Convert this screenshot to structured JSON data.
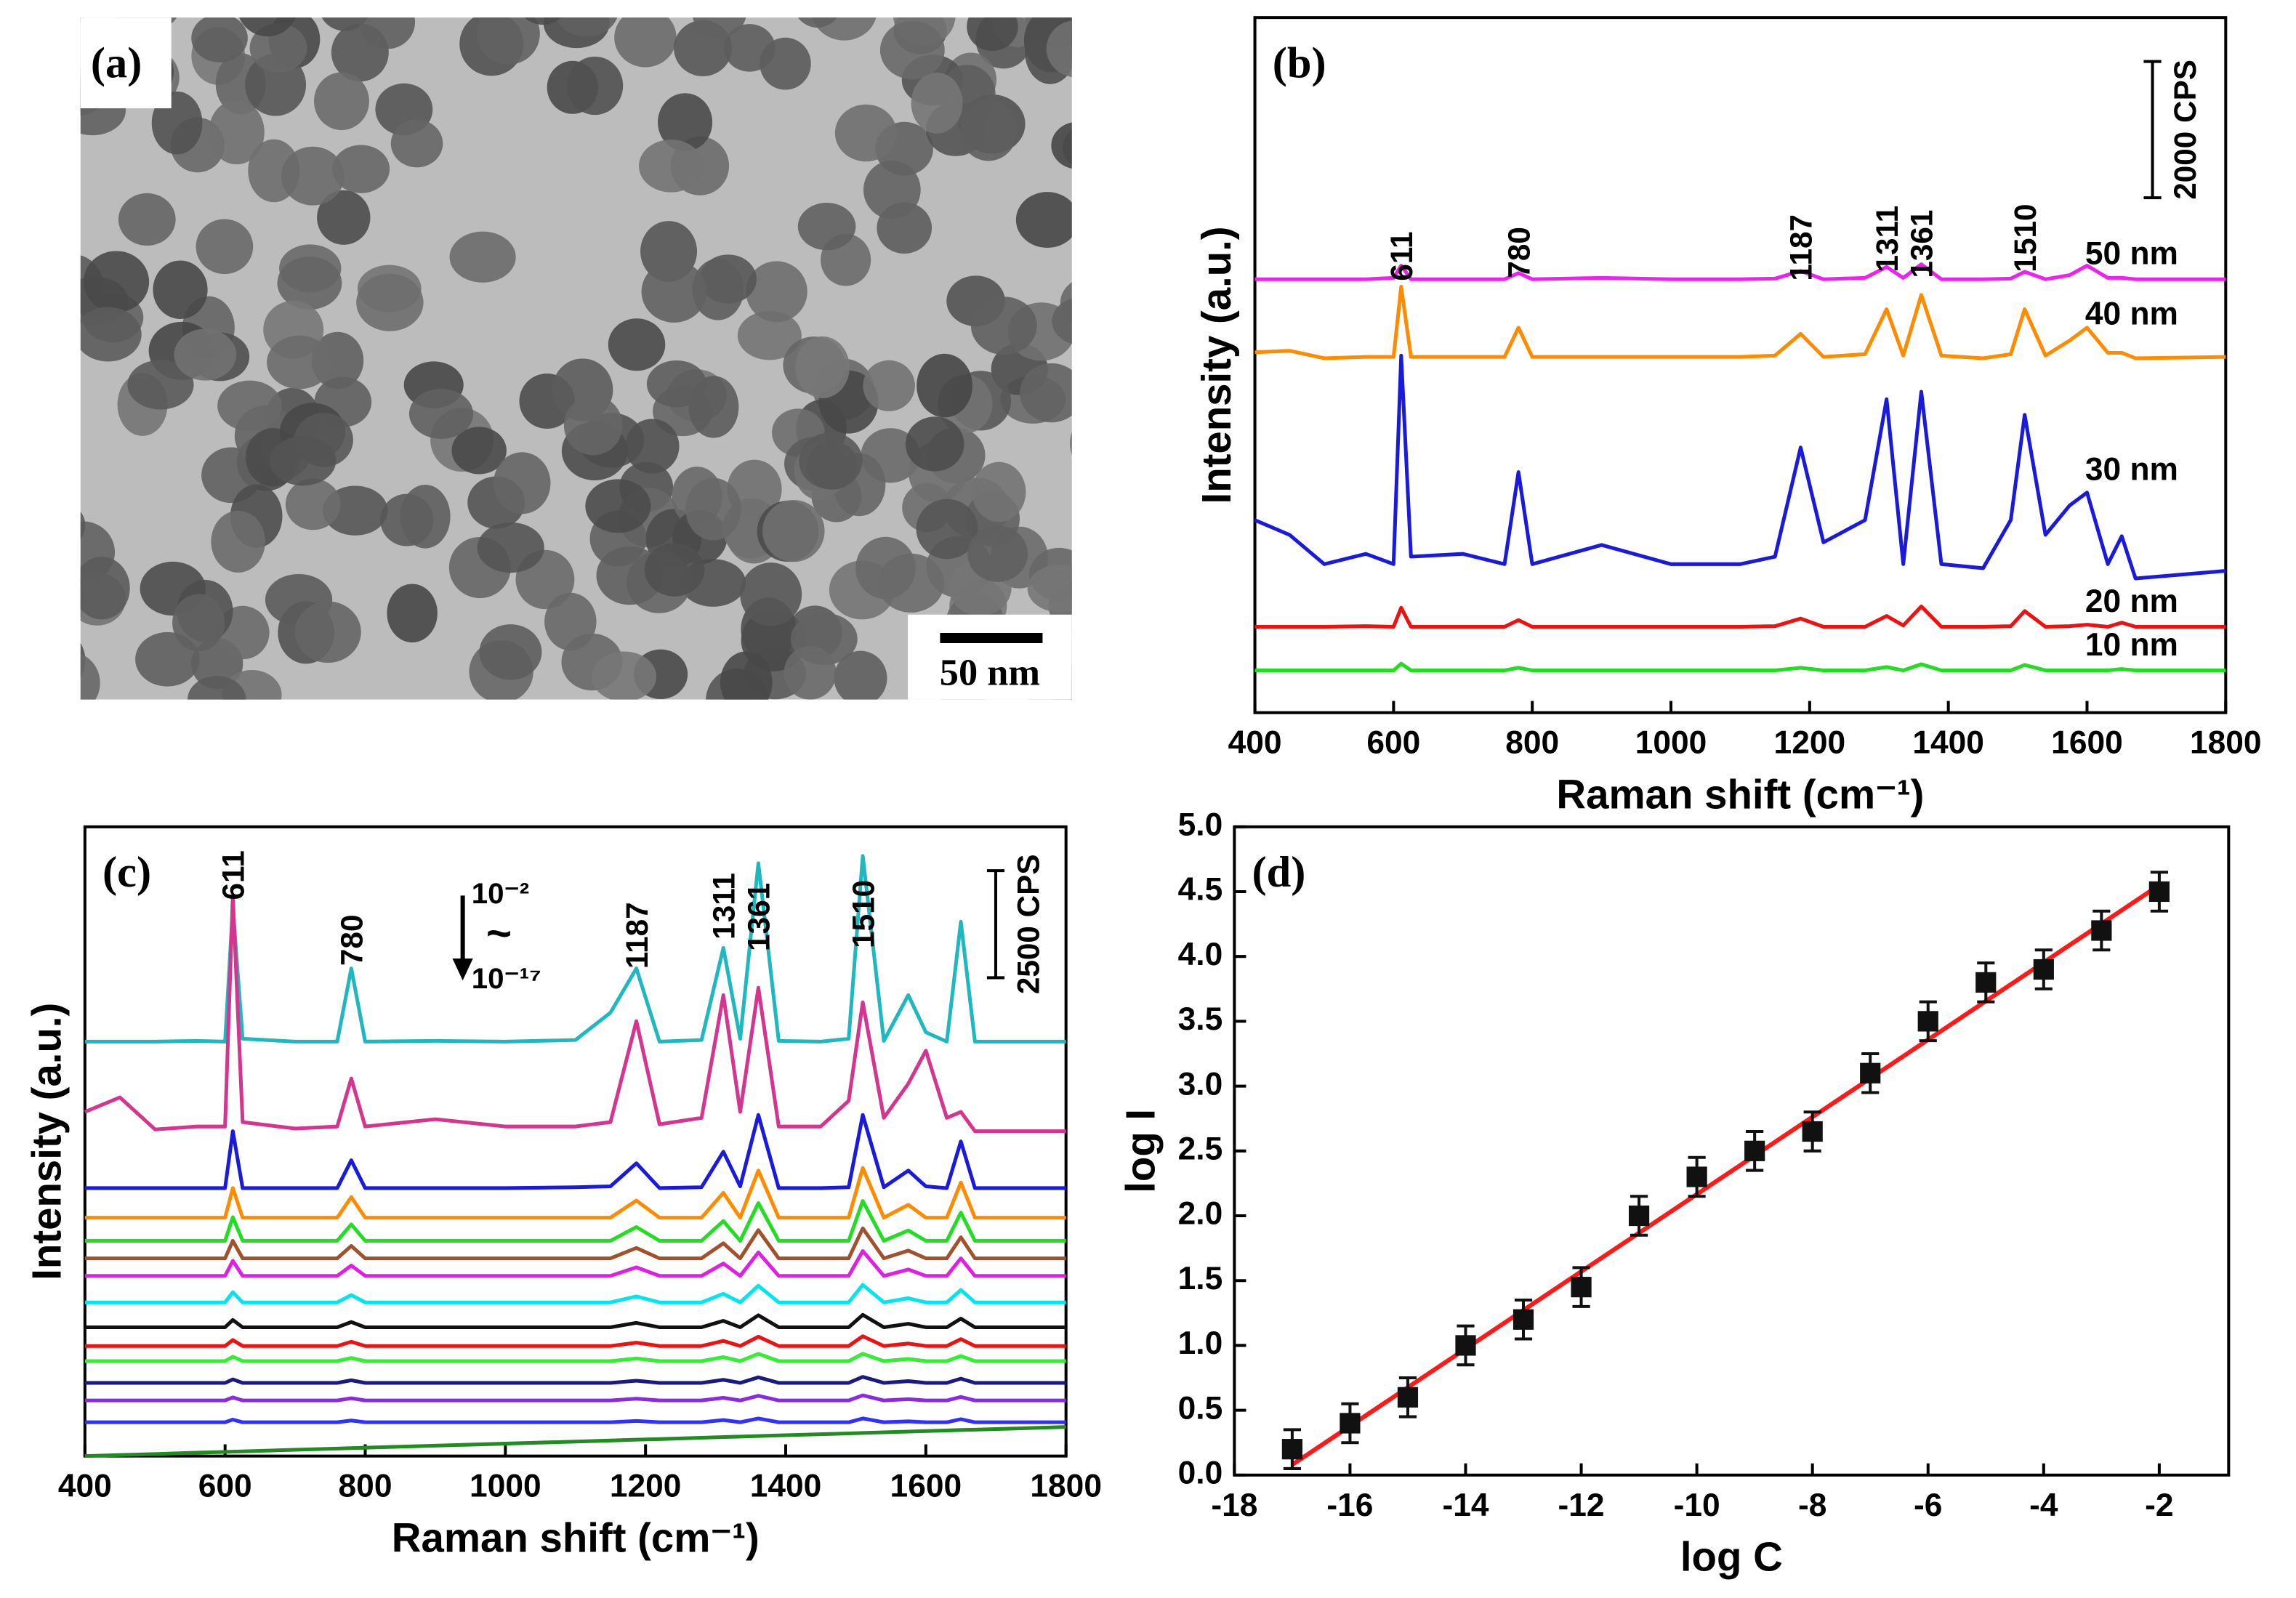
{
  "panel_a": {
    "panel_label": "(a)",
    "scale_bar": "50 nm"
  },
  "chart_data": [
    {
      "type": "line",
      "panel_label": "(b)",
      "xlabel": "Raman shift (cm⁻¹)",
      "ylabel": "Intensity (a.u.)",
      "xlim": [
        400,
        1800
      ],
      "xticks": [
        400,
        600,
        800,
        1000,
        1200,
        1400,
        1600,
        1800
      ],
      "ylim": [
        0,
        10200
      ],
      "peak_labels": [
        611,
        780,
        1187,
        1311,
        1361,
        1510
      ],
      "scale_bar": {
        "value": 2000,
        "label": "2000 CPS"
      },
      "x": [
        400,
        450,
        500,
        560,
        600,
        611,
        625,
        700,
        760,
        780,
        800,
        900,
        1000,
        1100,
        1150,
        1187,
        1220,
        1280,
        1311,
        1335,
        1361,
        1390,
        1450,
        1490,
        1510,
        1540,
        1575,
        1600,
        1630,
        1650,
        1670,
        1800
      ],
      "series": [
        {
          "name": "10 nm",
          "color": "#22dd22",
          "values": [
            620,
            620,
            620,
            620,
            620,
            720,
            620,
            620,
            620,
            660,
            620,
            620,
            620,
            620,
            620,
            660,
            620,
            620,
            670,
            620,
            710,
            620,
            620,
            620,
            700,
            620,
            620,
            620,
            620,
            640,
            620,
            620
          ]
        },
        {
          "name": "20 nm",
          "color": "#ee1111",
          "values": [
            1260,
            1260,
            1260,
            1270,
            1260,
            1540,
            1260,
            1260,
            1260,
            1360,
            1260,
            1260,
            1260,
            1260,
            1270,
            1380,
            1260,
            1260,
            1420,
            1280,
            1560,
            1260,
            1260,
            1270,
            1490,
            1260,
            1270,
            1290,
            1260,
            1320,
            1260,
            1260
          ]
        },
        {
          "name": "30 nm",
          "color": "#1a1add",
          "values": [
            2825,
            2610,
            2180,
            2330,
            2180,
            5240,
            2290,
            2330,
            2180,
            3530,
            2180,
            2460,
            2180,
            2180,
            2290,
            3890,
            2500,
            2825,
            4600,
            2180,
            4710,
            2180,
            2120,
            2825,
            4370,
            2610,
            3040,
            3230,
            2180,
            2590,
            1970,
            2080
          ]
        },
        {
          "name": "40 nm",
          "color": "#ff8c00",
          "values": [
            5290,
            5310,
            5200,
            5220,
            5220,
            6250,
            5220,
            5220,
            5220,
            5650,
            5220,
            5220,
            5220,
            5220,
            5240,
            5560,
            5220,
            5260,
            5920,
            5240,
            6130,
            5240,
            5200,
            5260,
            5920,
            5240,
            5460,
            5650,
            5280,
            5280,
            5200,
            5220
          ]
        },
        {
          "name": "50 nm",
          "color": "#ee22ee",
          "values": [
            6360,
            6360,
            6360,
            6360,
            6380,
            6560,
            6360,
            6360,
            6360,
            6450,
            6360,
            6380,
            6360,
            6360,
            6370,
            6480,
            6360,
            6380,
            6540,
            6380,
            6580,
            6360,
            6360,
            6370,
            6470,
            6360,
            6420,
            6560,
            6380,
            6380,
            6360,
            6360
          ]
        }
      ]
    },
    {
      "type": "line",
      "panel_label": "(c)",
      "xlabel": "Raman shift (cm⁻¹)",
      "ylabel": "Intensity (a.u.)",
      "xlim": [
        400,
        1800
      ],
      "xticks": [
        400,
        600,
        800,
        1000,
        1200,
        1400,
        1600,
        1800
      ],
      "ylim": [
        0,
        14700
      ],
      "peak_labels": [
        611,
        780,
        1187,
        1311,
        1361,
        1510
      ],
      "scale_bar": {
        "value": 2500,
        "label": "2500 CPS"
      },
      "arrow_labels": [
        "10⁻²",
        "~",
        "10⁻¹⁷"
      ],
      "x": [
        400,
        450,
        500,
        560,
        600,
        611,
        625,
        700,
        760,
        780,
        800,
        900,
        1000,
        1100,
        1150,
        1187,
        1220,
        1280,
        1311,
        1335,
        1361,
        1390,
        1450,
        1490,
        1510,
        1540,
        1575,
        1600,
        1630,
        1650,
        1670,
        1800
      ],
      "series": [
        {
          "color": "#20b8c0",
          "values": [
            9680,
            9680,
            9680,
            9700,
            9680,
            12825,
            9750,
            9680,
            9680,
            11390,
            9680,
            9700,
            9680,
            9720,
            10360,
            11390,
            9680,
            9720,
            11870,
            9750,
            13850,
            9700,
            9680,
            9750,
            14020,
            9700,
            10770,
            9900,
            9680,
            12480,
            9680,
            9680
          ]
        },
        {
          "color": "#d4358f",
          "values": [
            8040,
            8380,
            7630,
            7700,
            7700,
            13100,
            7800,
            7650,
            7700,
            8820,
            7700,
            7870,
            7700,
            7700,
            7800,
            10160,
            7750,
            7900,
            10770,
            8040,
            10940,
            7700,
            7700,
            8300,
            10600,
            7900,
            8700,
            9470,
            7900,
            8040,
            7590,
            7590
          ]
        },
        {
          "color": "#1a1adc",
          "values": [
            6260,
            6260,
            6260,
            6260,
            6260,
            7590,
            6260,
            6260,
            6260,
            6910,
            6260,
            6260,
            6260,
            6280,
            6300,
            6840,
            6260,
            6280,
            7110,
            6300,
            7970,
            6260,
            6260,
            6280,
            7970,
            6280,
            6670,
            6300,
            6260,
            7350,
            6260,
            6260
          ]
        },
        {
          "color": "#ff8c00",
          "values": [
            5570,
            5570,
            5570,
            5570,
            5570,
            6260,
            5570,
            5570,
            5570,
            6050,
            5570,
            5570,
            5570,
            5570,
            5570,
            5970,
            5570,
            5570,
            6150,
            5570,
            6670,
            5570,
            5570,
            5570,
            6730,
            5570,
            5870,
            5570,
            5570,
            6390,
            5570,
            5570
          ]
        },
        {
          "color": "#22dd22",
          "values": [
            5030,
            5030,
            5030,
            5030,
            5030,
            5580,
            5030,
            5030,
            5030,
            5410,
            5030,
            5030,
            5030,
            5030,
            5030,
            5350,
            5030,
            5030,
            5490,
            5030,
            5910,
            5030,
            5030,
            5030,
            5960,
            5030,
            5270,
            5030,
            5030,
            5690,
            5030,
            5030
          ]
        },
        {
          "color": "#a0522d",
          "values": [
            4620,
            4620,
            4620,
            4620,
            4620,
            5030,
            4620,
            4620,
            4620,
            4910,
            4620,
            4620,
            4620,
            4620,
            4620,
            4860,
            4620,
            4620,
            4970,
            4620,
            5280,
            4620,
            4620,
            4620,
            5320,
            4620,
            4800,
            4620,
            4620,
            5110,
            4620,
            4620
          ]
        },
        {
          "color": "#e020e0",
          "values": [
            4210,
            4210,
            4210,
            4210,
            4210,
            4560,
            4210,
            4210,
            4210,
            4450,
            4210,
            4210,
            4210,
            4210,
            4210,
            4410,
            4210,
            4210,
            4500,
            4210,
            4760,
            4210,
            4210,
            4210,
            4790,
            4210,
            4360,
            4210,
            4210,
            4620,
            4210,
            4210
          ]
        },
        {
          "color": "#00e5ee",
          "values": [
            3590,
            3590,
            3590,
            3590,
            3590,
            3830,
            3590,
            3590,
            3590,
            3760,
            3590,
            3590,
            3590,
            3590,
            3590,
            3730,
            3590,
            3590,
            3790,
            3590,
            3980,
            3590,
            3590,
            3590,
            4000,
            3590,
            3690,
            3590,
            3590,
            3880,
            3590,
            3590
          ]
        },
        {
          "color": "#111111",
          "values": [
            3010,
            3010,
            3010,
            3010,
            3010,
            3180,
            3010,
            3010,
            3010,
            3130,
            3010,
            3010,
            3010,
            3010,
            3010,
            3110,
            3010,
            3010,
            3160,
            3010,
            3290,
            3010,
            3010,
            3010,
            3300,
            3010,
            3090,
            3010,
            3010,
            3210,
            3010,
            3010
          ]
        },
        {
          "color": "#ee1111",
          "values": [
            2570,
            2570,
            2570,
            2570,
            2570,
            2710,
            2570,
            2570,
            2570,
            2670,
            2570,
            2570,
            2570,
            2570,
            2570,
            2650,
            2570,
            2570,
            2690,
            2570,
            2790,
            2570,
            2570,
            2570,
            2800,
            2570,
            2630,
            2570,
            2570,
            2730,
            2570,
            2570
          ]
        },
        {
          "color": "#33ee33",
          "values": [
            2220,
            2220,
            2220,
            2220,
            2220,
            2320,
            2220,
            2220,
            2220,
            2290,
            2220,
            2220,
            2220,
            2220,
            2220,
            2280,
            2220,
            2220,
            2310,
            2220,
            2390,
            2220,
            2220,
            2220,
            2390,
            2220,
            2270,
            2220,
            2220,
            2340,
            2220,
            2220
          ]
        },
        {
          "color": "#1a1a80",
          "values": [
            1710,
            1710,
            1710,
            1710,
            1710,
            1790,
            1710,
            1710,
            1710,
            1770,
            1710,
            1710,
            1710,
            1710,
            1710,
            1760,
            1710,
            1710,
            1780,
            1710,
            1840,
            1710,
            1710,
            1710,
            1850,
            1710,
            1750,
            1710,
            1710,
            1810,
            1710,
            1710
          ]
        },
        {
          "color": "#8a2be2",
          "values": [
            1300,
            1300,
            1300,
            1300,
            1300,
            1370,
            1300,
            1300,
            1300,
            1350,
            1300,
            1300,
            1300,
            1300,
            1300,
            1340,
            1300,
            1300,
            1360,
            1300,
            1410,
            1300,
            1300,
            1300,
            1420,
            1300,
            1330,
            1300,
            1300,
            1380,
            1300,
            1300
          ]
        },
        {
          "color": "#3030ff",
          "values": [
            790,
            790,
            790,
            790,
            790,
            850,
            790,
            790,
            790,
            830,
            790,
            790,
            790,
            790,
            790,
            820,
            790,
            790,
            840,
            790,
            880,
            790,
            790,
            790,
            880,
            790,
            810,
            790,
            790,
            860,
            790,
            790
          ]
        },
        {
          "color": "#228b22",
          "values": [
            0,
            24,
            49,
            78,
            97,
            103,
            109,
            146,
            175,
            185,
            194,
            243,
            291,
            340,
            364,
            382,
            398,
            427,
            443,
            454,
            467,
            481,
            510,
            530,
            539,
            554,
            571,
            583,
            598,
            607,
            617,
            680
          ]
        }
      ]
    },
    {
      "type": "scatter",
      "panel_label": "(d)",
      "xlabel": "log C",
      "ylabel": "log I",
      "xlim": [
        -18,
        -0.8
      ],
      "xticks": [
        -18,
        -16,
        -14,
        -12,
        -10,
        -8,
        -6,
        -4,
        -2
      ],
      "ylim": [
        0,
        5
      ],
      "yticks": [
        {
          "value": 0,
          "label": "0.0"
        },
        {
          "value": 0.5,
          "label": "0.5"
        },
        {
          "value": 1,
          "label": "1.0"
        },
        {
          "value": 1.5,
          "label": "1.5"
        },
        {
          "value": 2,
          "label": "2.0"
        },
        {
          "value": 2.5,
          "label": "2.5"
        },
        {
          "value": 3,
          "label": "3.0"
        },
        {
          "value": 3.5,
          "label": "3.5"
        },
        {
          "value": 4,
          "label": "4.0"
        },
        {
          "value": 4.5,
          "label": "4.5"
        },
        {
          "value": 5,
          "label": "5.0"
        }
      ],
      "color": "#111111",
      "x": [
        -17,
        -16,
        -15,
        -14,
        -13,
        -12,
        -11,
        -10,
        -9,
        -8,
        -7,
        -6,
        -5,
        -4,
        -3,
        -2
      ],
      "values": [
        0.2,
        0.4,
        0.6,
        1.0,
        1.2,
        1.45,
        2.0,
        2.3,
        2.5,
        2.65,
        3.1,
        3.5,
        3.8,
        3.9,
        4.2,
        4.5
      ],
      "errors": [
        0.15,
        0.15,
        0.15,
        0.15,
        0.15,
        0.15,
        0.15,
        0.15,
        0.15,
        0.15,
        0.15,
        0.15,
        0.15,
        0.15,
        0.15,
        0.15
      ],
      "fit": {
        "color": "#ff1a1a",
        "x": [
          -17,
          -2
        ],
        "values": [
          0.08,
          4.55
        ]
      }
    }
  ]
}
